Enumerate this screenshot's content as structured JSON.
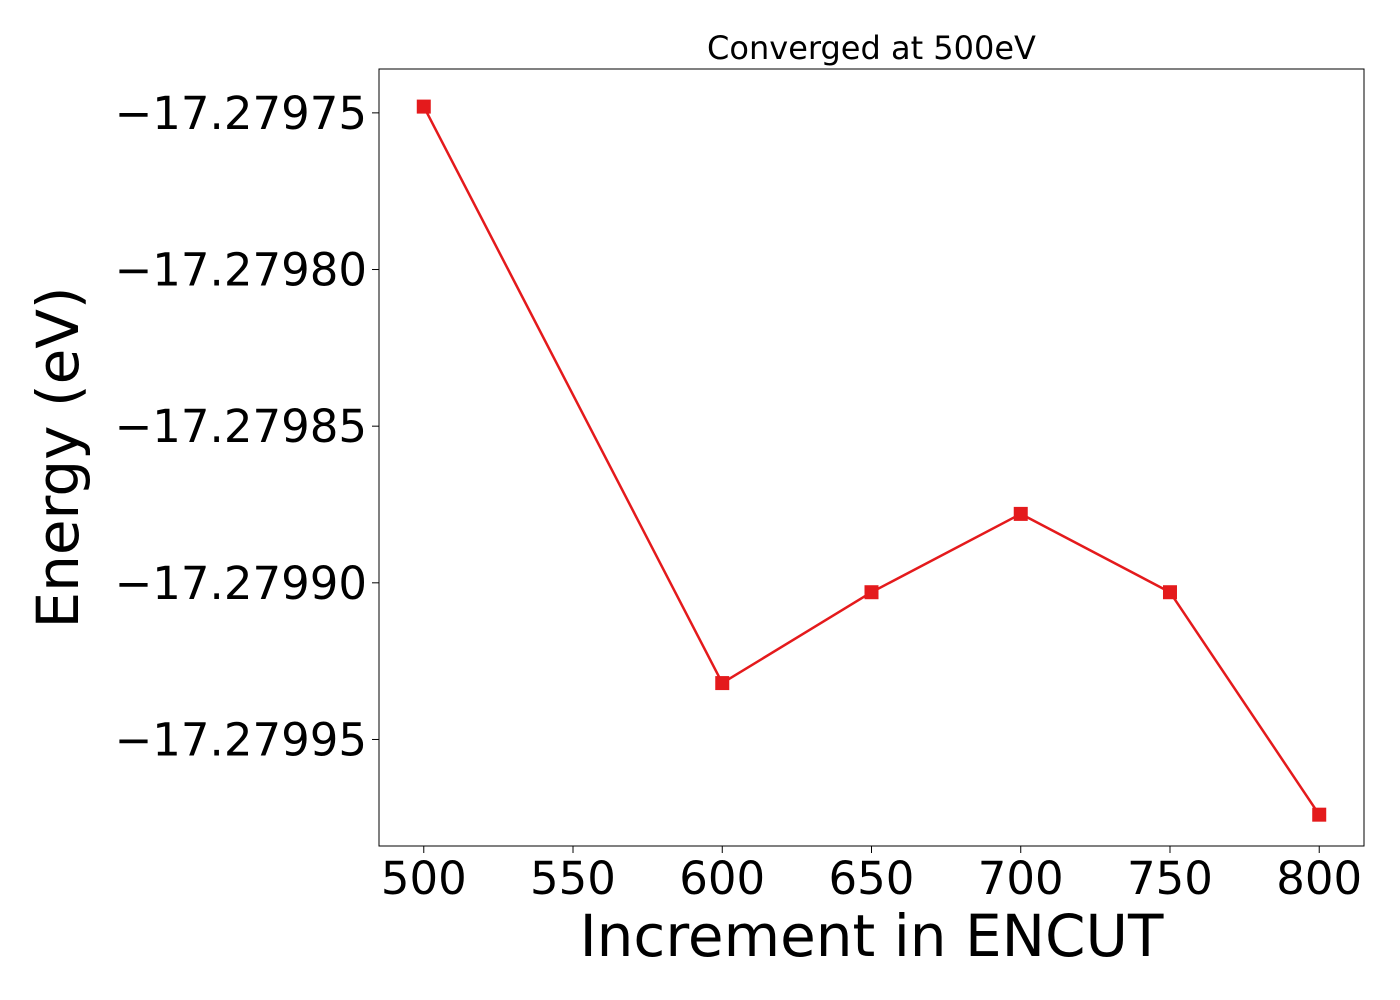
{
  "chart_data": {
    "type": "line",
    "title": "Converged at 500eV",
    "xlabel": "Increment in ENCUT",
    "ylabel": "Energy (eV)",
    "x": [
      500,
      600,
      650,
      700,
      750,
      800
    ],
    "series": [
      {
        "values": [
          -17.279748,
          -17.279932,
          -17.279903,
          -17.279878,
          -17.279903,
          -17.279974
        ],
        "color": "#e41a1c",
        "marker": "square"
      }
    ],
    "xticks": [
      500,
      550,
      600,
      650,
      700,
      750,
      800
    ],
    "xtick_labels": [
      "500",
      "550",
      "600",
      "650",
      "700",
      "750",
      "800"
    ],
    "yticks": [
      -17.27975,
      -17.2798,
      -17.27985,
      -17.2799,
      -17.27995
    ],
    "ytick_labels": [
      "−17.27975",
      "−17.27980",
      "−17.27985",
      "−17.27990",
      "−17.27995"
    ],
    "xlim": [
      485,
      815
    ],
    "ylim": [
      -17.279984,
      -17.279736
    ],
    "grid": false,
    "legend": false
  }
}
